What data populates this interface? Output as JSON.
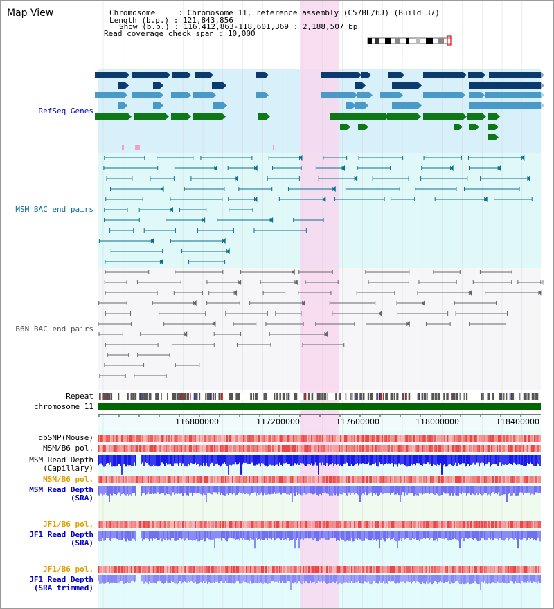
{
  "view": {
    "title": "Map View"
  },
  "info": {
    "chromosome_label": "Chromosome",
    "chromosome_value": "Chromosome 11, reference assembly (C57BL/6J) (Build 37)",
    "length_label": "Length (b.p.)",
    "length_value": "121,843,856",
    "show_label": "Show (b.p.)",
    "show_value": "116,412,863-118,601,369 : 2,188,507 bp",
    "coverage_label": "Read coverage check span",
    "coverage_value": "10,000"
  },
  "tracks": {
    "refseq": "RefSeq Genes",
    "msm_bac": "MSM BAC end pairs",
    "b6n_bac": "B6N BAC end pairs",
    "repeat": "Repeat",
    "chromosome": "chromosome 11",
    "dbsnp": "dbSNP(Mouse)",
    "msm_b6_pol_1": "MSM/B6 pol.",
    "msm_depth_cap_1": "MSM Read Depth",
    "msm_depth_cap_2": "(Capillary)",
    "msm_b6_pol_2": "MSM/B6 pol.",
    "msm_depth_sra_1": "MSM Read Depth",
    "msm_depth_sra_2": "(SRA)",
    "jf1_b6_pol_1": "JF1/B6 pol.",
    "jf1_depth_sra_1": "JF1 Read Depth",
    "jf1_depth_sra_2": "(SRA)",
    "jf1_b6_pol_2": "JF1/B6 pol.",
    "jf1_depth_trim_1": "JF1 Read Depth",
    "jf1_depth_trim_2": "(SRA trimmed)"
  },
  "axis": {
    "ticks": [
      "116800000",
      "117200000",
      "117600000",
      "118000000",
      "118400000"
    ]
  },
  "colors": {
    "refseq_bg": "#d8f0fa",
    "msm_bg": "#e0f8f8",
    "b6n_bg": "#f6f6f8",
    "highlight": "#f8d8f0",
    "label_blue": "#0000cc",
    "label_teal": "#0a7090",
    "label_gray": "#505050",
    "label_orange": "#e0a000",
    "chrom_green": "#006600"
  }
}
